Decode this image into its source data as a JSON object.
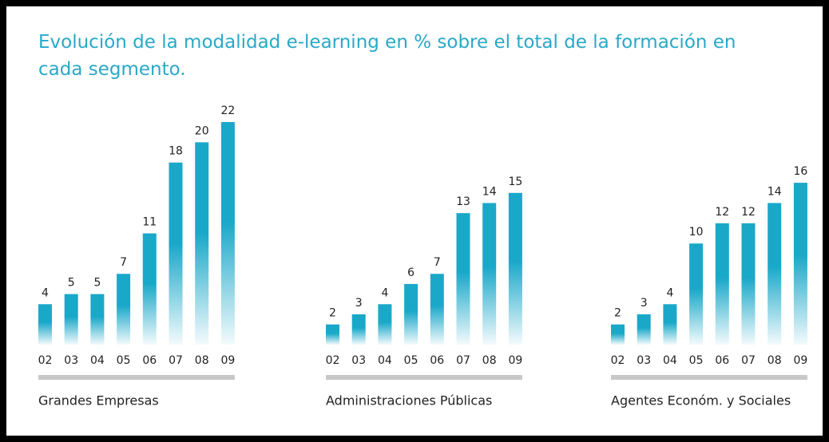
{
  "title": "Evolución de la modalidad e-learning en % sobre el total de la formación en cada segmento.",
  "chart_data": [
    {
      "type": "bar",
      "xlabel": "Grandes Empresas",
      "categories": [
        "02",
        "03",
        "04",
        "05",
        "06",
        "07",
        "08",
        "09"
      ],
      "values": [
        4,
        5,
        5,
        7,
        11,
        18,
        20,
        22
      ],
      "color": "#1aa8c9",
      "ylim": [
        0,
        22
      ]
    },
    {
      "type": "bar",
      "xlabel": "Administraciones Públicas",
      "categories": [
        "02",
        "03",
        "04",
        "05",
        "06",
        "07",
        "08",
        "09"
      ],
      "values": [
        2,
        3,
        4,
        6,
        7,
        13,
        14,
        15
      ],
      "color": "#1aa8c9",
      "ylim": [
        0,
        22
      ]
    },
    {
      "type": "bar",
      "xlabel": "Agentes Económ. y Sociales",
      "categories": [
        "02",
        "03",
        "04",
        "05",
        "06",
        "07",
        "08",
        "09"
      ],
      "values": [
        2,
        3,
        4,
        10,
        12,
        12,
        14,
        16
      ],
      "color": "#1aa8c9",
      "ylim": [
        0,
        22
      ]
    }
  ]
}
